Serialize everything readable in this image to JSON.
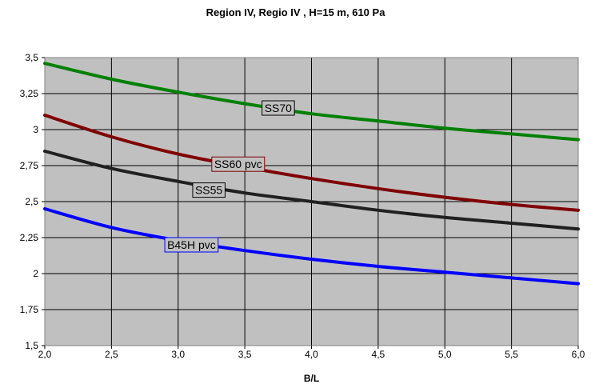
{
  "chart_data": {
    "type": "line",
    "title": "Region IV, Regio IV , H=15 m, 610 Pa",
    "xlabel": "B/L",
    "ylabel": "",
    "xlim": [
      2.0,
      6.0
    ],
    "ylim": [
      1.5,
      3.5
    ],
    "xticks": [
      "2,0",
      "2,5",
      "3,0",
      "3,5",
      "4,0",
      "4,5",
      "5,0",
      "5,5",
      "6,0"
    ],
    "yticks": [
      "1,5",
      "1,75",
      "2",
      "2,25",
      "2,5",
      "2,75",
      "3",
      "3,25",
      "3,5"
    ],
    "grid": true,
    "legend": "inline labels on curves",
    "plot_background": "#c0c0c0",
    "series": [
      {
        "name": "SS70",
        "color": "#008000",
        "x": [
          2.0,
          2.5,
          3.0,
          3.5,
          4.0,
          4.5,
          5.0,
          5.5,
          6.0
        ],
        "y": [
          3.46,
          3.35,
          3.26,
          3.18,
          3.11,
          3.06,
          3.01,
          2.97,
          2.93
        ],
        "label_at": [
          3.75,
          3.15
        ],
        "label_border": "#000000"
      },
      {
        "name": "SS60 pvc",
        "color": "#800000",
        "x": [
          2.0,
          2.5,
          3.0,
          3.5,
          4.0,
          4.5,
          5.0,
          5.5,
          6.0
        ],
        "y": [
          3.1,
          2.95,
          2.83,
          2.74,
          2.66,
          2.59,
          2.53,
          2.48,
          2.44
        ],
        "label_at": [
          3.45,
          2.76
        ],
        "label_border": "#800000"
      },
      {
        "name": "SS55",
        "color": "#202020",
        "x": [
          2.0,
          2.5,
          3.0,
          3.5,
          4.0,
          4.5,
          5.0,
          5.5,
          6.0
        ],
        "y": [
          2.85,
          2.73,
          2.64,
          2.56,
          2.5,
          2.44,
          2.39,
          2.35,
          2.31
        ],
        "label_at": [
          3.23,
          2.58
        ],
        "label_border": "#000000"
      },
      {
        "name": "B45H pvc",
        "color": "#0000ff",
        "x": [
          2.0,
          2.5,
          3.0,
          3.5,
          4.0,
          4.5,
          5.0,
          5.5,
          6.0
        ],
        "y": [
          2.45,
          2.32,
          2.23,
          2.16,
          2.1,
          2.05,
          2.01,
          1.97,
          1.93
        ],
        "label_at": [
          3.1,
          2.2
        ],
        "label_border": "#0000ff"
      }
    ]
  }
}
